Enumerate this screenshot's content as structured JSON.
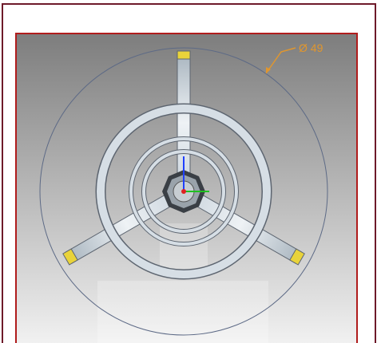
{
  "viewport": {
    "dimension_label": "Ø 49"
  }
}
